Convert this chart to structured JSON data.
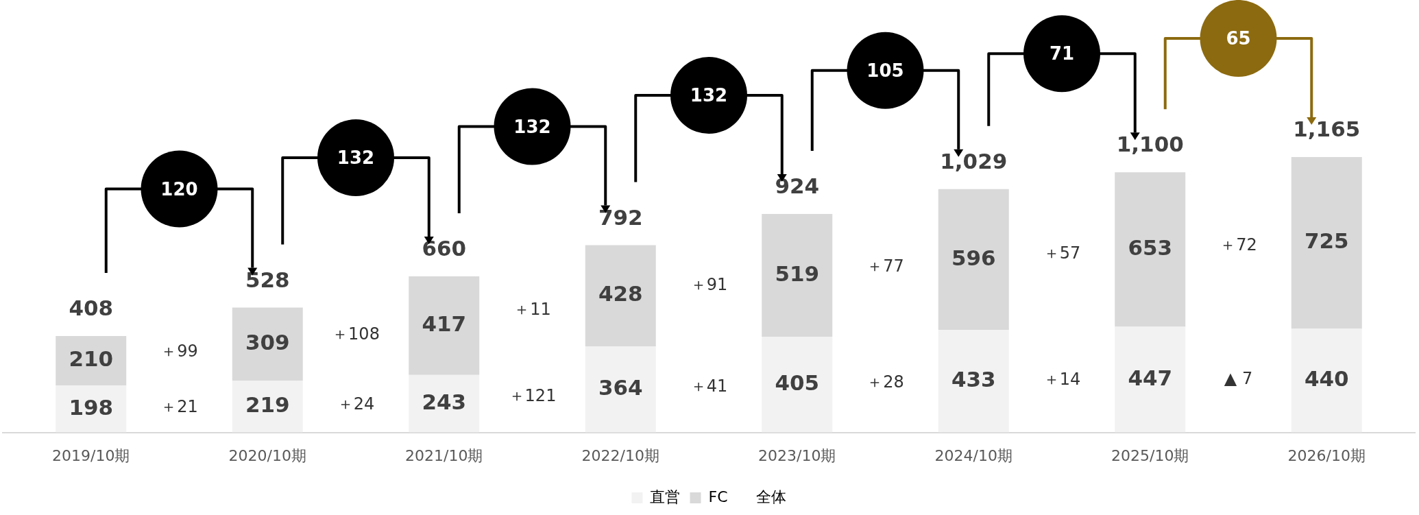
{
  "chart_data": {
    "type": "bar",
    "stacked": true,
    "data_labels": true,
    "legend": "bottom",
    "grid": false,
    "categories": [
      "2019/10期",
      "2020/10期",
      "2021/10期",
      "2022/10期",
      "2023/10期",
      "2024/10期",
      "2025/10期",
      "2026/10期"
    ],
    "series": [
      {
        "name": "直営",
        "color": "#f2f2f2",
        "values": [
          198,
          219,
          243,
          364,
          405,
          433,
          447,
          440
        ]
      },
      {
        "name": "FC",
        "color": "#d9d9d9",
        "values": [
          210,
          309,
          417,
          428,
          519,
          596,
          653,
          725
        ]
      }
    ],
    "totals": [
      "408",
      "528",
      "660",
      "792",
      "924",
      "1,029",
      "1,100",
      "1,165"
    ],
    "annotations": [
      "＋99",
      "＋21",
      "120",
      "＋108",
      "＋24",
      "132",
      "＋11",
      "＋121",
      "132",
      "＋91",
      "＋41",
      "132",
      "＋77",
      "＋28",
      "105",
      "＋57",
      "＋14",
      "71",
      "＋72",
      "▲ 7",
      "65",
      "全体"
    ]
  }
}
